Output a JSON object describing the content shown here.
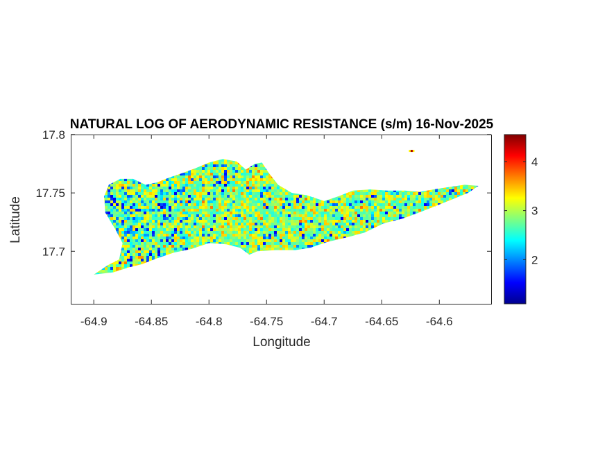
{
  "figure": {
    "title": "NATURAL LOG OF AERODYNAMIC RESISTANCE (s/m) 16-Nov-2025",
    "xlabel": "Longitude",
    "ylabel": "Latitude"
  },
  "chart_data": {
    "type": "heatmap",
    "title": "NATURAL LOG OF AERODYNAMIC RESISTANCE (s/m) 16-Nov-2025",
    "xlabel": "Longitude",
    "ylabel": "Latitude",
    "xlim": [
      -64.92,
      -64.555
    ],
    "ylim": [
      17.655,
      17.8
    ],
    "xticks": [
      -64.9,
      -64.85,
      -64.8,
      -64.75,
      -64.7,
      -64.65,
      -64.6
    ],
    "xtick_labels": [
      "-64.9",
      "-64.85",
      "-64.8",
      "-64.75",
      "-64.7",
      "-64.65",
      "-64.6"
    ],
    "yticks": [
      17.7,
      17.75,
      17.8
    ],
    "ytick_labels": [
      "17.7",
      "17.75",
      "17.8"
    ],
    "colorbar": {
      "colormap": "jet",
      "range": [
        1.1,
        4.55
      ],
      "ticks": [
        2,
        3,
        4
      ],
      "tick_labels": [
        "2",
        "3",
        "4"
      ]
    },
    "grid": false,
    "typical_value": 3.0,
    "island_outline_lonlat": [
      [
        -64.9,
        17.68
      ],
      [
        -64.888,
        17.688
      ],
      [
        -64.878,
        17.693
      ],
      [
        -64.875,
        17.707
      ],
      [
        -64.882,
        17.72
      ],
      [
        -64.89,
        17.733
      ],
      [
        -64.891,
        17.747
      ],
      [
        -64.887,
        17.757
      ],
      [
        -64.877,
        17.762
      ],
      [
        -64.866,
        17.762
      ],
      [
        -64.855,
        17.757
      ],
      [
        -64.845,
        17.759
      ],
      [
        -64.835,
        17.763
      ],
      [
        -64.823,
        17.767
      ],
      [
        -64.812,
        17.771
      ],
      [
        -64.8,
        17.776
      ],
      [
        -64.788,
        17.779
      ],
      [
        -64.776,
        17.777
      ],
      [
        -64.768,
        17.77
      ],
      [
        -64.76,
        17.775
      ],
      [
        -64.754,
        17.776
      ],
      [
        -64.748,
        17.767
      ],
      [
        -64.74,
        17.757
      ],
      [
        -64.728,
        17.75
      ],
      [
        -64.715,
        17.748
      ],
      [
        -64.7,
        17.743
      ],
      [
        -64.688,
        17.747
      ],
      [
        -64.675,
        17.752
      ],
      [
        -64.66,
        17.753
      ],
      [
        -64.645,
        17.752
      ],
      [
        -64.63,
        17.752
      ],
      [
        -64.617,
        17.751
      ],
      [
        -64.605,
        17.753
      ],
      [
        -64.592,
        17.755
      ],
      [
        -64.578,
        17.757
      ],
      [
        -64.566,
        17.756
      ],
      [
        -64.575,
        17.75
      ],
      [
        -64.59,
        17.744
      ],
      [
        -64.605,
        17.738
      ],
      [
        -64.618,
        17.733
      ],
      [
        -64.632,
        17.728
      ],
      [
        -64.648,
        17.724
      ],
      [
        -64.665,
        17.716
      ],
      [
        -64.68,
        17.712
      ],
      [
        -64.697,
        17.708
      ],
      [
        -64.712,
        17.703
      ],
      [
        -64.725,
        17.701
      ],
      [
        -64.742,
        17.701
      ],
      [
        -64.758,
        17.7
      ],
      [
        -64.765,
        17.697
      ],
      [
        -64.773,
        17.703
      ],
      [
        -64.785,
        17.706
      ],
      [
        -64.8,
        17.707
      ],
      [
        -64.815,
        17.702
      ],
      [
        -64.83,
        17.699
      ],
      [
        -64.845,
        17.694
      ],
      [
        -64.858,
        17.689
      ],
      [
        -64.87,
        17.686
      ],
      [
        -64.883,
        17.682
      ],
      [
        -64.9,
        17.68
      ]
    ],
    "islet_lonlat": [
      -64.624,
      17.786
    ],
    "islet_value": 4.4
  }
}
